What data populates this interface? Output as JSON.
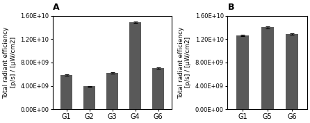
{
  "chart_data": [
    {
      "type": "bar",
      "title": "A",
      "categories": [
        "G1",
        "G2",
        "G3",
        "G4",
        "G6"
      ],
      "values": [
        5900000000,
        3900000000,
        6200000000,
        14900000000,
        7000000000
      ],
      "errors": [
        120000000,
        100000000,
        120000000,
        150000000,
        120000000
      ],
      "ylabel": "Total radiant efficiency\n[p/s] / [μW/cm2]",
      "color": "#595959",
      "ylim": [
        0,
        16000000000
      ],
      "yticks": [
        {
          "value": 0,
          "label": "0.00E+00"
        },
        {
          "value": 4000000000,
          "label": "4.00E+09"
        },
        {
          "value": 8000000000,
          "label": "8.00E+09"
        },
        {
          "value": 12000000000,
          "label": "1.20E+10"
        },
        {
          "value": 16000000000,
          "label": "1.60E+10"
        }
      ]
    },
    {
      "type": "bar",
      "title": "B",
      "categories": [
        "G1",
        "G5",
        "G6"
      ],
      "values": [
        12600000000,
        14000000000,
        12800000000
      ],
      "errors": [
        150000000,
        150000000,
        120000000
      ],
      "ylabel": "Total radiant efficiency\n[p/s] / [μW/cm2]",
      "color": "#595959",
      "ylim": [
        0,
        16000000000
      ],
      "yticks": [
        {
          "value": 0,
          "label": "0.00E+00"
        },
        {
          "value": 4000000000,
          "label": "4.00E+09"
        },
        {
          "value": 8000000000,
          "label": "8.00E+09"
        },
        {
          "value": 12000000000,
          "label": "1.20E+10"
        },
        {
          "value": 16000000000,
          "label": "1.60E+10"
        }
      ]
    }
  ]
}
